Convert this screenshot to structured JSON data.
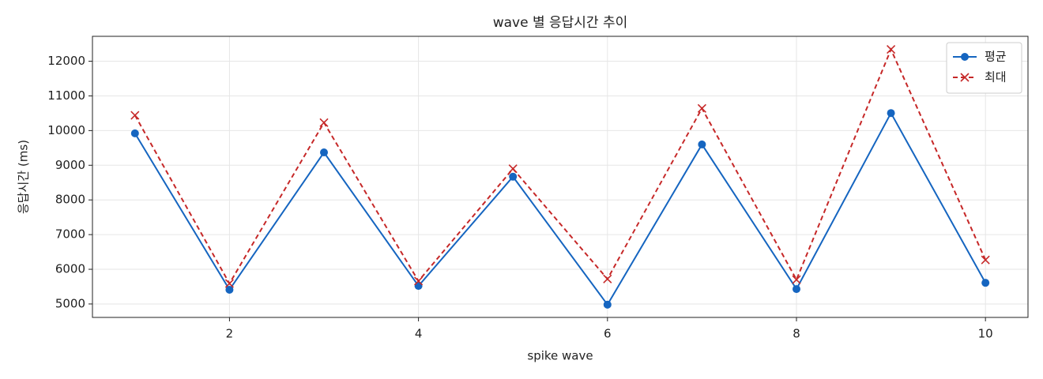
{
  "chart_data": {
    "type": "line",
    "title": "wave 별 응답시간 추이",
    "x_label": "spike wave",
    "y_label": "응답시간 (ms)",
    "x": [
      1,
      2,
      3,
      4,
      5,
      6,
      7,
      8,
      9,
      10
    ],
    "series": [
      {
        "name": "평균",
        "color": "#1565c0",
        "marker": "o",
        "dashed": false,
        "values": [
          9920,
          5410,
          9370,
          5520,
          8670,
          4980,
          9600,
          5430,
          10505,
          5610
        ]
      },
      {
        "name": "최대",
        "color": "#c62828",
        "marker": "x",
        "dashed": true,
        "values": [
          10440,
          5590,
          10230,
          5660,
          8900,
          5720,
          10640,
          5700,
          12340,
          6270
        ]
      }
    ],
    "xlim": [
      0.55,
      10.45
    ],
    "ylim": [
      4612,
      12718
    ],
    "xticks": [
      2,
      4,
      6,
      8,
      10
    ],
    "yticks": [
      5000,
      6000,
      7000,
      8000,
      9000,
      10000,
      11000,
      12000
    ],
    "grid": true,
    "legend": "upper right"
  }
}
